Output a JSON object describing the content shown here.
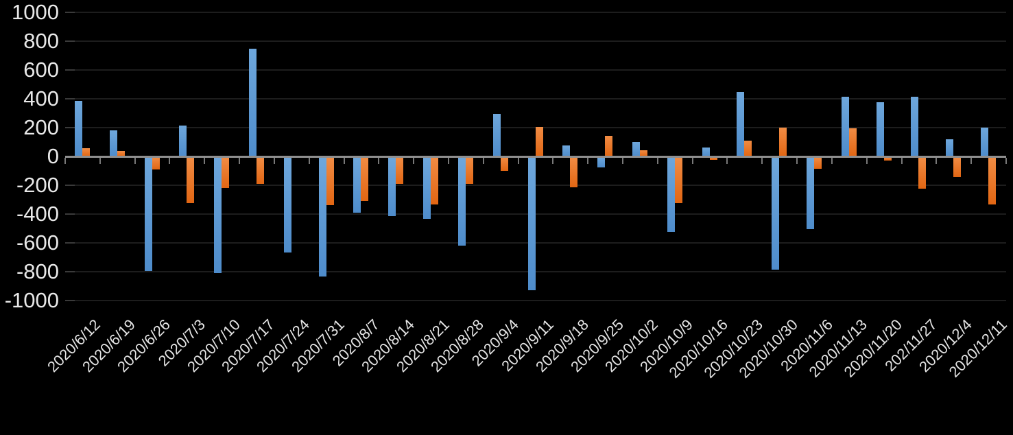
{
  "chart_data": {
    "type": "bar",
    "title": "",
    "categories": [
      "2020/6/12",
      "2020/6/19",
      "2020/6/26",
      "2020/7/3",
      "2020/7/10",
      "2020/7/17",
      "2020/7/24",
      "2020/7/31",
      "2020/8/7",
      "2020/8/14",
      "2020/8/21",
      "2020/8/28",
      "2020/9/4",
      "2020/9/11",
      "2020/9/18",
      "2020/9/25",
      "2020/10/2",
      "2020/10/9",
      "2020/10/16",
      "2020/10/23",
      "2020/10/30",
      "2020/11/6",
      "2020/11/13",
      "2020/11/20",
      "202/11/27",
      "2020/12/4",
      "2020/12/11"
    ],
    "series": [
      {
        "name": "blue",
        "color": "#5B9BD5",
        "values": [
          385,
          180,
          -790,
          215,
          -805,
          750,
          -660,
          -830,
          -385,
          -410,
          -430,
          -615,
          295,
          -925,
          75,
          -70,
          100,
          -520,
          60,
          450,
          -780,
          -500,
          415,
          375,
          415,
          120,
          200
        ]
      },
      {
        "name": "orange",
        "color": "#ED7D31",
        "values": [
          55,
          40,
          -85,
          -320,
          -215,
          -185,
          0,
          -335,
          -305,
          -185,
          -330,
          -185,
          -95,
          205,
          -210,
          145,
          45,
          -320,
          -20,
          110,
          200,
          -80,
          195,
          -25,
          -220,
          -140,
          -330
        ]
      }
    ],
    "xlabel": "",
    "ylabel": "",
    "ylim": [
      -1000,
      1000
    ],
    "yticks": [
      1000,
      800,
      600,
      400,
      200,
      0,
      -200,
      -400,
      -600,
      -800,
      -1000
    ],
    "grid": true,
    "legend": "none",
    "background_color": "#000000",
    "gridline_color": "#1d1d1d",
    "axis_line_color": "#8f8f8f",
    "text_color": "#e8e8e8",
    "x_label_rotation_deg": -45
  }
}
